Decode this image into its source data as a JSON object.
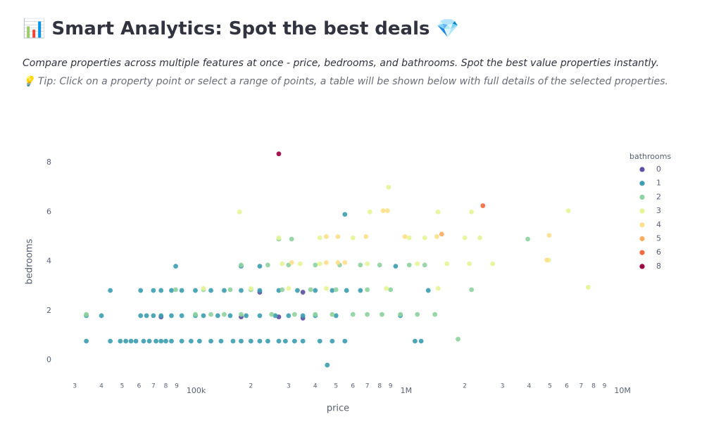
{
  "header": {
    "title": "📊 Smart Analytics: Spot the best deals 💎",
    "description": "Compare properties across multiple features at once - price, bedrooms, and bathrooms. Spot the best value properties instantly.",
    "tip": "💡 Tip: Click on a property point or select a range of points, a table will be shown below with full details of the selected properties."
  },
  "chart_data": {
    "type": "scatter",
    "x_label": "price",
    "y_label": "bedrooms",
    "legend_title": "bathrooms",
    "x_scale": "log",
    "grid": false,
    "legend_position": "right",
    "xlim": [
      23700,
      11000000
    ],
    "ylim": [
      -0.65,
      8.6
    ],
    "xticks": [
      {
        "value": 30000,
        "label": "3"
      },
      {
        "value": 40000,
        "label": "4"
      },
      {
        "value": 50000,
        "label": "5"
      },
      {
        "value": 60000,
        "label": "6"
      },
      {
        "value": 70000,
        "label": "7"
      },
      {
        "value": 80000,
        "label": "8"
      },
      {
        "value": 90000,
        "label": "9"
      },
      {
        "value": 100000,
        "label": "100k"
      },
      {
        "value": 200000,
        "label": "2"
      },
      {
        "value": 300000,
        "label": "3"
      },
      {
        "value": 400000,
        "label": "4"
      },
      {
        "value": 500000,
        "label": "5"
      },
      {
        "value": 600000,
        "label": "6"
      },
      {
        "value": 700000,
        "label": "7"
      },
      {
        "value": 800000,
        "label": "8"
      },
      {
        "value": 900000,
        "label": "9"
      },
      {
        "value": 1000000,
        "label": "1M"
      },
      {
        "value": 2000000,
        "label": "2"
      },
      {
        "value": 3000000,
        "label": "3"
      },
      {
        "value": 4000000,
        "label": "4"
      },
      {
        "value": 5000000,
        "label": "5"
      },
      {
        "value": 6000000,
        "label": "6"
      },
      {
        "value": 7000000,
        "label": "7"
      },
      {
        "value": 8000000,
        "label": "8"
      },
      {
        "value": 9000000,
        "label": "9"
      },
      {
        "value": 10000000,
        "label": "10M"
      }
    ],
    "yticks": [
      0,
      2,
      4,
      6,
      8
    ],
    "series": [
      {
        "name": "0",
        "color": "#5e4fa2",
        "x": [
          76000,
          180000,
          270000,
          350000,
          220000,
          350000
        ],
        "values": [
          1.75,
          1.75,
          1.75,
          1.7,
          2.75,
          2.75
        ]
      },
      {
        "name": "1",
        "color": "#3f9fb0",
        "x": [
          34000,
          44000,
          49000,
          52000,
          55000,
          58000,
          63000,
          67000,
          72000,
          76000,
          80000,
          85000,
          95000,
          105000,
          115000,
          130000,
          145000,
          165000,
          180000,
          200000,
          220000,
          240000,
          270000,
          290000,
          320000,
          350000,
          420000,
          480000,
          550000,
          1170000,
          1250000,
          34000,
          40000,
          61000,
          65000,
          70000,
          76000,
          85000,
          95000,
          110000,
          120000,
          140000,
          160000,
          190000,
          220000,
          260000,
          300000,
          350000,
          400000,
          500000,
          1000000,
          44000,
          61000,
          70000,
          76000,
          85000,
          95000,
          110000,
          130000,
          150000,
          180000,
          220000,
          270000,
          330000,
          400000,
          480000,
          560000,
          650000,
          1350000,
          89000,
          180000,
          220000,
          950000,
          550000,
          455000
        ],
        "values": [
          0.77,
          0.77,
          0.77,
          0.77,
          0.77,
          0.77,
          0.77,
          0.77,
          0.77,
          0.77,
          0.77,
          0.77,
          0.77,
          0.77,
          0.77,
          0.77,
          0.77,
          0.77,
          0.77,
          0.77,
          0.77,
          0.77,
          0.77,
          0.77,
          0.77,
          0.77,
          0.77,
          0.77,
          0.77,
          0.77,
          0.77,
          1.8,
          1.8,
          1.8,
          1.8,
          1.8,
          1.8,
          1.8,
          1.8,
          1.8,
          1.8,
          1.8,
          1.8,
          1.8,
          1.8,
          1.8,
          1.8,
          1.8,
          1.8,
          1.8,
          1.8,
          2.82,
          2.82,
          2.82,
          2.82,
          2.82,
          2.82,
          2.82,
          2.82,
          2.82,
          2.82,
          2.82,
          2.82,
          2.82,
          2.82,
          2.82,
          2.82,
          2.82,
          2.82,
          3.8,
          3.8,
          3.8,
          3.8,
          5.9,
          -0.2
        ]
      },
      {
        "name": "2",
        "color": "#8fd3a0",
        "x": [
          34000,
          110000,
          130000,
          150000,
          180000,
          250000,
          320000,
          400000,
          480000,
          600000,
          700000,
          820000,
          1000000,
          1200000,
          1450000,
          89000,
          120000,
          160000,
          200000,
          280000,
          380000,
          500000,
          700000,
          900000,
          2150000,
          180000,
          240000,
          300000,
          400000,
          520000,
          650000,
          800000,
          1100000,
          1300000,
          270000,
          310000,
          1860000,
          3940000
        ],
        "values": [
          1.85,
          1.85,
          1.85,
          1.85,
          1.85,
          1.85,
          1.85,
          1.85,
          1.85,
          1.85,
          1.85,
          1.85,
          1.85,
          1.85,
          1.85,
          2.85,
          2.85,
          2.85,
          2.85,
          2.85,
          2.85,
          2.85,
          2.85,
          2.85,
          2.85,
          3.85,
          3.85,
          3.85,
          3.85,
          3.85,
          3.85,
          3.85,
          3.85,
          3.85,
          4.9,
          4.9,
          0.85,
          4.9
        ]
      },
      {
        "name": "3",
        "color": "#e6f598",
        "x": [
          120000,
          200000,
          300000,
          450000,
          860000,
          1500000,
          280000,
          340000,
          420000,
          700000,
          1200000,
          1650000,
          2100000,
          2700000,
          270000,
          420000,
          600000,
          1100000,
          1300000,
          2000000,
          2350000,
          177000,
          720000,
          1500000,
          2150000,
          880000,
          7550000,
          4940000,
          6100000
        ],
        "values": [
          2.9,
          2.9,
          2.9,
          2.9,
          2.9,
          2.9,
          3.9,
          3.9,
          3.9,
          3.9,
          3.9,
          3.9,
          3.9,
          3.9,
          4.95,
          4.95,
          4.95,
          4.95,
          4.95,
          4.95,
          4.95,
          6.0,
          6.0,
          6.0,
          6.0,
          7.0,
          2.95,
          4.05,
          6.05
        ]
      },
      {
        "name": "4",
        "color": "#fee08b",
        "x": [
          310000,
          450000,
          510000,
          550000,
          450000,
          510000,
          690000,
          1050000,
          1480000,
          830000,
          870000,
          4840000,
          4960000
        ],
        "values": [
          3.95,
          3.95,
          3.95,
          3.95,
          5.0,
          5.0,
          5.0,
          5.0,
          5.0,
          6.05,
          6.05,
          4.05,
          5.05
        ]
      },
      {
        "name": "5",
        "color": "#fdae61",
        "x": [
          1560000
        ],
        "values": [
          5.1
        ]
      },
      {
        "name": "6",
        "color": "#f46d43",
        "x": [
          2430000
        ],
        "values": [
          6.25
        ]
      },
      {
        "name": "8",
        "color": "#9e0142",
        "x": [
          270000
        ],
        "values": [
          8.35
        ]
      }
    ]
  }
}
